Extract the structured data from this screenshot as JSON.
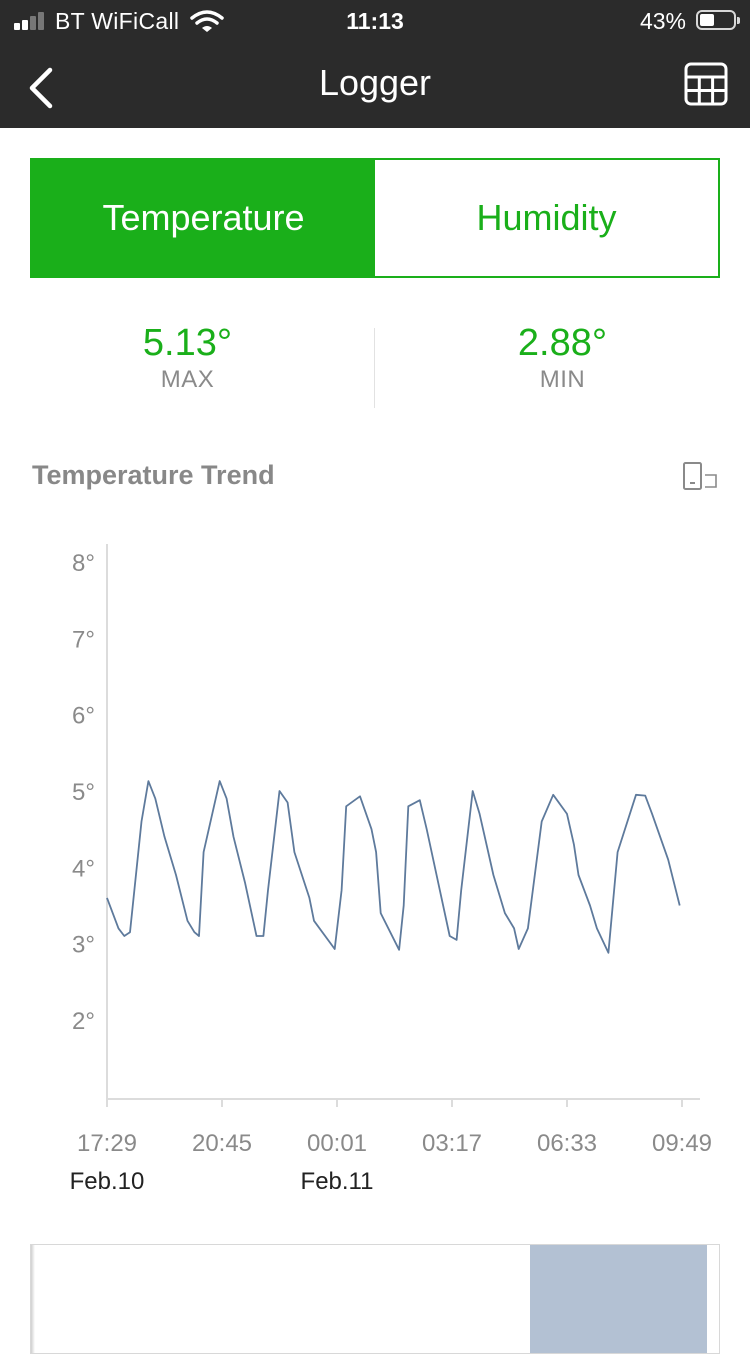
{
  "status_bar": {
    "carrier": "BT WiFiCall",
    "time": "11:13",
    "battery_percent": "43%",
    "battery_level": 0.43
  },
  "nav": {
    "title": "Logger",
    "back_icon": "chevron-left-icon",
    "table_icon": "table-grid-icon"
  },
  "tabs": [
    {
      "label": "Temperature",
      "active": true
    },
    {
      "label": "Humidity",
      "active": false
    }
  ],
  "stats": {
    "max": {
      "value": "5.13°",
      "label": "MAX"
    },
    "min": {
      "value": "2.88°",
      "label": "MIN"
    }
  },
  "trend": {
    "title": "Temperature Trend",
    "rotate_icon": "rotate-screen-icon"
  },
  "colors": {
    "accent": "#1aaf1a",
    "series": "#5e7a9c",
    "navigator_window": "#b3c1d3",
    "header_bg": "#2b2b2b"
  },
  "chart_data": {
    "type": "line",
    "y_ticks": [
      {
        "value": 2,
        "label": "2°"
      },
      {
        "value": 3,
        "label": "3°"
      },
      {
        "value": 4,
        "label": "4°"
      },
      {
        "value": 5,
        "label": "5°"
      },
      {
        "value": 6,
        "label": "6°"
      },
      {
        "value": 7,
        "label": "7°"
      },
      {
        "value": 8,
        "label": "8°"
      }
    ],
    "ylim": [
      1,
      8.25
    ],
    "x_ticks": [
      {
        "value": 0,
        "label": "17:29",
        "date": "Feb.10"
      },
      {
        "value": 1,
        "label": "20:45",
        "date": ""
      },
      {
        "value": 2,
        "label": "00:01",
        "date": "Feb.11"
      },
      {
        "value": 3,
        "label": "03:17",
        "date": ""
      },
      {
        "value": 4,
        "label": "06:33",
        "date": ""
      },
      {
        "value": 5,
        "label": "09:49",
        "date": ""
      }
    ],
    "xlim": [
      0,
      5.15
    ],
    "grid": false,
    "series": [
      {
        "x": [
          0,
          0.1,
          0.15,
          0.2,
          0.3,
          0.36,
          0.42,
          0.5,
          0.6,
          0.7,
          0.76,
          0.8,
          0.84,
          0.98,
          1.04,
          1.1,
          1.2,
          1.3,
          1.36,
          1.4,
          1.5,
          1.57,
          1.63,
          1.76,
          1.8,
          1.98,
          2.04,
          2.08,
          2.2,
          2.3,
          2.34,
          2.38,
          2.54,
          2.58,
          2.62,
          2.72,
          2.78,
          2.98,
          3.04,
          3.08,
          3.18,
          3.24,
          3.36,
          3.46,
          3.54,
          3.58,
          3.66,
          3.78,
          3.88,
          4.0,
          4.06,
          4.1,
          4.2,
          4.26,
          4.36,
          4.44,
          4.6,
          4.68,
          4.74,
          4.88,
          4.98
        ],
        "y": [
          3.6,
          3.2,
          3.1,
          3.15,
          4.6,
          5.13,
          4.9,
          4.4,
          3.9,
          3.3,
          3.15,
          3.1,
          4.2,
          5.13,
          4.9,
          4.4,
          3.8,
          3.1,
          3.1,
          3.7,
          5.0,
          4.85,
          4.2,
          3.6,
          3.3,
          2.93,
          3.7,
          4.8,
          4.93,
          4.5,
          4.2,
          3.4,
          2.92,
          3.5,
          4.8,
          4.88,
          4.5,
          3.1,
          3.05,
          3.7,
          5.0,
          4.7,
          3.9,
          3.4,
          3.2,
          2.93,
          3.2,
          4.6,
          4.95,
          4.7,
          4.3,
          3.9,
          3.5,
          3.2,
          2.88,
          4.2,
          4.95,
          4.94,
          4.7,
          4.1,
          3.5
        ]
      }
    ]
  },
  "navigator": {
    "window_start": 0.723,
    "window_end": 0.98
  }
}
